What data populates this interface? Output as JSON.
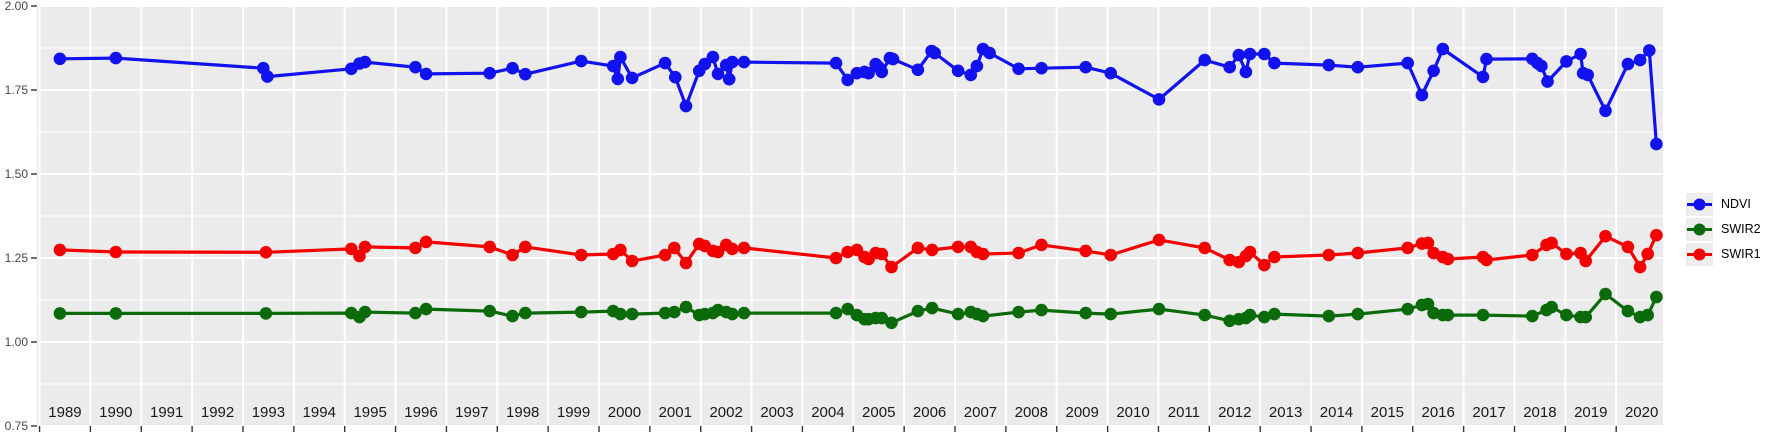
{
  "figure": {
    "title": "",
    "panel_background": "#EBEBEB",
    "grid_color": "#FFFFFF",
    "outer_background": "#FFFFFF",
    "tick_color": "#333333"
  },
  "legend": {
    "position": "right",
    "entries": [
      {
        "label": "NDVI",
        "color": "#1212EF"
      },
      {
        "label": "SWIR2",
        "color": "#0B6B0B"
      },
      {
        "label": "SWIR1",
        "color": "#F40000"
      }
    ]
  },
  "axes": {
    "x_range": [
      1988.95,
      2020.92
    ],
    "y_range": [
      0.75,
      2.0
    ],
    "x_tick_labels": [
      "1989",
      "1990",
      "1991",
      "1992",
      "1993",
      "1994",
      "1995",
      "1996",
      "1997",
      "1998",
      "1999",
      "2000",
      "2001",
      "2002",
      "2003",
      "2004",
      "2005",
      "2006",
      "2007",
      "2008",
      "2009",
      "2010",
      "2011",
      "2012",
      "2013",
      "2014",
      "2015",
      "2016",
      "2017",
      "2018",
      "2019",
      "2020"
    ],
    "x_tick_years": [
      1989,
      1990,
      1991,
      1992,
      1993,
      1994,
      1995,
      1996,
      1997,
      1998,
      1999,
      2000,
      2001,
      2002,
      2003,
      2004,
      2005,
      2006,
      2007,
      2008,
      2009,
      2010,
      2011,
      2012,
      2013,
      2014,
      2015,
      2016,
      2017,
      2018,
      2019,
      2020
    ],
    "y_ticks": [
      {
        "label": "2.00",
        "value": 2.0
      },
      {
        "label": "1.75",
        "value": 1.75
      },
      {
        "label": "1.50",
        "value": 1.5
      },
      {
        "label": "1.25",
        "value": 1.25
      },
      {
        "label": "1.00",
        "value": 1.0
      },
      {
        "label": "0.75",
        "value": 0.75
      }
    ],
    "y_minor_values": [
      1.875,
      1.625,
      1.375,
      1.125,
      0.875
    ]
  },
  "chart_data": {
    "type": "line",
    "title": "",
    "xlabel": "",
    "ylabel": "",
    "xlim": [
      1988.95,
      2020.92
    ],
    "ylim": [
      0.75,
      2.0
    ],
    "grid": true,
    "legend_position": "right",
    "marker_radius": 6.3,
    "line_width": 3.2,
    "series": [
      {
        "name": "NDVI",
        "color": "#1212EF",
        "points": [
          [
            1989.4,
            1.843
          ],
          [
            1990.5,
            1.845
          ],
          [
            1993.4,
            1.815
          ],
          [
            1993.48,
            1.79
          ],
          [
            1995.13,
            1.813
          ],
          [
            1995.29,
            1.829
          ],
          [
            1995.4,
            1.833
          ],
          [
            1996.39,
            1.818
          ],
          [
            1996.6,
            1.798
          ],
          [
            1997.85,
            1.8
          ],
          [
            1998.3,
            1.815
          ],
          [
            1998.55,
            1.797
          ],
          [
            1999.65,
            1.836
          ],
          [
            2000.28,
            1.821
          ],
          [
            2000.37,
            1.783
          ],
          [
            2000.42,
            1.848
          ],
          [
            2000.65,
            1.786
          ],
          [
            2001.3,
            1.83
          ],
          [
            2001.5,
            1.788
          ],
          [
            2001.71,
            1.702
          ],
          [
            2001.97,
            1.807
          ],
          [
            2002.08,
            1.827
          ],
          [
            2002.24,
            1.848
          ],
          [
            2002.34,
            1.798
          ],
          [
            2002.5,
            1.824
          ],
          [
            2002.56,
            1.782
          ],
          [
            2002.62,
            1.833
          ],
          [
            2002.85,
            1.833
          ],
          [
            2004.66,
            1.83
          ],
          [
            2004.89,
            1.78
          ],
          [
            2005.07,
            1.8
          ],
          [
            2005.22,
            1.804
          ],
          [
            2005.3,
            1.8
          ],
          [
            2005.44,
            1.827
          ],
          [
            2005.5,
            1.818
          ],
          [
            2005.56,
            1.804
          ],
          [
            2005.72,
            1.845
          ],
          [
            2005.78,
            1.842
          ],
          [
            2006.27,
            1.81
          ],
          [
            2006.54,
            1.866
          ],
          [
            2006.6,
            1.86
          ],
          [
            2007.06,
            1.807
          ],
          [
            2007.31,
            1.795
          ],
          [
            2007.43,
            1.821
          ],
          [
            2007.55,
            1.872
          ],
          [
            2007.68,
            1.86
          ],
          [
            2008.25,
            1.813
          ],
          [
            2008.7,
            1.815
          ],
          [
            2009.57,
            1.818
          ],
          [
            2010.06,
            1.8
          ],
          [
            2011.01,
            1.722
          ],
          [
            2011.91,
            1.839
          ],
          [
            2012.4,
            1.818
          ],
          [
            2012.58,
            1.854
          ],
          [
            2012.72,
            1.804
          ],
          [
            2012.8,
            1.857
          ],
          [
            2013.08,
            1.857
          ],
          [
            2013.28,
            1.83
          ],
          [
            2014.35,
            1.824
          ],
          [
            2014.92,
            1.818
          ],
          [
            2015.9,
            1.83
          ],
          [
            2016.18,
            1.735
          ],
          [
            2016.41,
            1.807
          ],
          [
            2016.59,
            1.872
          ],
          [
            2017.38,
            1.789
          ],
          [
            2017.45,
            1.842
          ],
          [
            2018.35,
            1.843
          ],
          [
            2018.45,
            1.83
          ],
          [
            2018.53,
            1.821
          ],
          [
            2018.65,
            1.775
          ],
          [
            2019.02,
            1.835
          ],
          [
            2019.3,
            1.857
          ],
          [
            2019.35,
            1.8
          ],
          [
            2019.44,
            1.795
          ],
          [
            2019.79,
            1.688
          ],
          [
            2020.23,
            1.827
          ],
          [
            2020.47,
            1.839
          ],
          [
            2020.65,
            1.868
          ],
          [
            2020.79,
            1.589
          ]
        ]
      },
      {
        "name": "SWIR2",
        "color": "#0B6B0B",
        "points": [
          [
            1989.4,
            1.085
          ],
          [
            1990.5,
            1.085
          ],
          [
            1993.45,
            1.085
          ],
          [
            1995.13,
            1.086
          ],
          [
            1995.29,
            1.074
          ],
          [
            1995.4,
            1.089
          ],
          [
            1996.39,
            1.086
          ],
          [
            1996.6,
            1.098
          ],
          [
            1997.85,
            1.092
          ],
          [
            1998.3,
            1.077
          ],
          [
            1998.55,
            1.086
          ],
          [
            1999.65,
            1.089
          ],
          [
            2000.28,
            1.092
          ],
          [
            2000.42,
            1.083
          ],
          [
            2000.65,
            1.083
          ],
          [
            2001.3,
            1.086
          ],
          [
            2001.48,
            1.089
          ],
          [
            2001.71,
            1.104
          ],
          [
            2001.97,
            1.08
          ],
          [
            2002.08,
            1.083
          ],
          [
            2002.24,
            1.086
          ],
          [
            2002.34,
            1.095
          ],
          [
            2002.5,
            1.089
          ],
          [
            2002.62,
            1.083
          ],
          [
            2002.85,
            1.086
          ],
          [
            2004.66,
            1.086
          ],
          [
            2004.89,
            1.098
          ],
          [
            2005.07,
            1.08
          ],
          [
            2005.22,
            1.068
          ],
          [
            2005.3,
            1.068
          ],
          [
            2005.44,
            1.071
          ],
          [
            2005.56,
            1.071
          ],
          [
            2005.75,
            1.057
          ],
          [
            2006.27,
            1.092
          ],
          [
            2006.55,
            1.101
          ],
          [
            2007.06,
            1.083
          ],
          [
            2007.31,
            1.089
          ],
          [
            2007.43,
            1.083
          ],
          [
            2007.55,
            1.077
          ],
          [
            2008.25,
            1.089
          ],
          [
            2008.7,
            1.095
          ],
          [
            2009.57,
            1.086
          ],
          [
            2010.06,
            1.083
          ],
          [
            2011.01,
            1.098
          ],
          [
            2011.91,
            1.08
          ],
          [
            2012.4,
            1.063
          ],
          [
            2012.58,
            1.068
          ],
          [
            2012.72,
            1.071
          ],
          [
            2012.8,
            1.08
          ],
          [
            2013.08,
            1.074
          ],
          [
            2013.28,
            1.083
          ],
          [
            2014.35,
            1.077
          ],
          [
            2014.92,
            1.083
          ],
          [
            2015.9,
            1.098
          ],
          [
            2016.18,
            1.11
          ],
          [
            2016.3,
            1.113
          ],
          [
            2016.41,
            1.086
          ],
          [
            2016.59,
            1.08
          ],
          [
            2016.69,
            1.08
          ],
          [
            2017.38,
            1.08
          ],
          [
            2018.35,
            1.077
          ],
          [
            2018.63,
            1.095
          ],
          [
            2018.73,
            1.104
          ],
          [
            2019.02,
            1.08
          ],
          [
            2019.3,
            1.074
          ],
          [
            2019.4,
            1.074
          ],
          [
            2019.79,
            1.143
          ],
          [
            2020.23,
            1.092
          ],
          [
            2020.47,
            1.074
          ],
          [
            2020.62,
            1.08
          ],
          [
            2020.79,
            1.134
          ]
        ]
      },
      {
        "name": "SWIR1",
        "color": "#F40000",
        "points": [
          [
            1989.4,
            1.274
          ],
          [
            1990.5,
            1.268
          ],
          [
            1993.45,
            1.267
          ],
          [
            1995.13,
            1.277
          ],
          [
            1995.29,
            1.256
          ],
          [
            1995.4,
            1.283
          ],
          [
            1996.39,
            1.28
          ],
          [
            1996.6,
            1.298
          ],
          [
            1997.85,
            1.283
          ],
          [
            1998.3,
            1.259
          ],
          [
            1998.55,
            1.283
          ],
          [
            1999.65,
            1.259
          ],
          [
            2000.28,
            1.262
          ],
          [
            2000.42,
            1.274
          ],
          [
            2000.65,
            1.241
          ],
          [
            2001.3,
            1.259
          ],
          [
            2001.48,
            1.28
          ],
          [
            2001.71,
            1.235
          ],
          [
            2001.97,
            1.292
          ],
          [
            2002.08,
            1.286
          ],
          [
            2002.24,
            1.271
          ],
          [
            2002.34,
            1.268
          ],
          [
            2002.5,
            1.289
          ],
          [
            2002.62,
            1.277
          ],
          [
            2002.85,
            1.28
          ],
          [
            2004.66,
            1.25
          ],
          [
            2004.89,
            1.268
          ],
          [
            2005.07,
            1.274
          ],
          [
            2005.22,
            1.253
          ],
          [
            2005.3,
            1.247
          ],
          [
            2005.44,
            1.265
          ],
          [
            2005.56,
            1.262
          ],
          [
            2005.75,
            1.223
          ],
          [
            2006.27,
            1.28
          ],
          [
            2006.55,
            1.274
          ],
          [
            2007.06,
            1.283
          ],
          [
            2007.31,
            1.283
          ],
          [
            2007.43,
            1.268
          ],
          [
            2007.55,
            1.262
          ],
          [
            2008.25,
            1.265
          ],
          [
            2008.7,
            1.289
          ],
          [
            2009.57,
            1.271
          ],
          [
            2010.06,
            1.259
          ],
          [
            2011.01,
            1.304
          ],
          [
            2011.91,
            1.28
          ],
          [
            2012.4,
            1.244
          ],
          [
            2012.58,
            1.238
          ],
          [
            2012.72,
            1.256
          ],
          [
            2012.8,
            1.268
          ],
          [
            2013.08,
            1.229
          ],
          [
            2013.28,
            1.253
          ],
          [
            2014.35,
            1.259
          ],
          [
            2014.92,
            1.265
          ],
          [
            2015.9,
            1.28
          ],
          [
            2016.18,
            1.293
          ],
          [
            2016.3,
            1.295
          ],
          [
            2016.41,
            1.265
          ],
          [
            2016.59,
            1.253
          ],
          [
            2016.69,
            1.247
          ],
          [
            2017.38,
            1.253
          ],
          [
            2017.45,
            1.244
          ],
          [
            2018.35,
            1.259
          ],
          [
            2018.63,
            1.289
          ],
          [
            2018.73,
            1.295
          ],
          [
            2019.02,
            1.262
          ],
          [
            2019.3,
            1.265
          ],
          [
            2019.4,
            1.241
          ],
          [
            2019.79,
            1.315
          ],
          [
            2020.23,
            1.283
          ],
          [
            2020.47,
            1.223
          ],
          [
            2020.62,
            1.262
          ],
          [
            2020.79,
            1.318
          ]
        ]
      }
    ]
  }
}
